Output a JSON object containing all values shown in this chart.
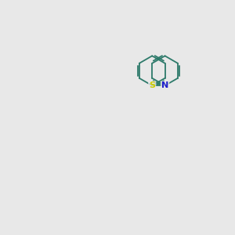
{
  "bg_color": "#e8e8e8",
  "bond_color": "#2d7a6a",
  "nitrogen_color": "#2020cc",
  "oxygen_color": "#cc2020",
  "sulfur_color": "#cccc00",
  "fluorine_color": "#cc00cc",
  "dark_text": "#333333"
}
